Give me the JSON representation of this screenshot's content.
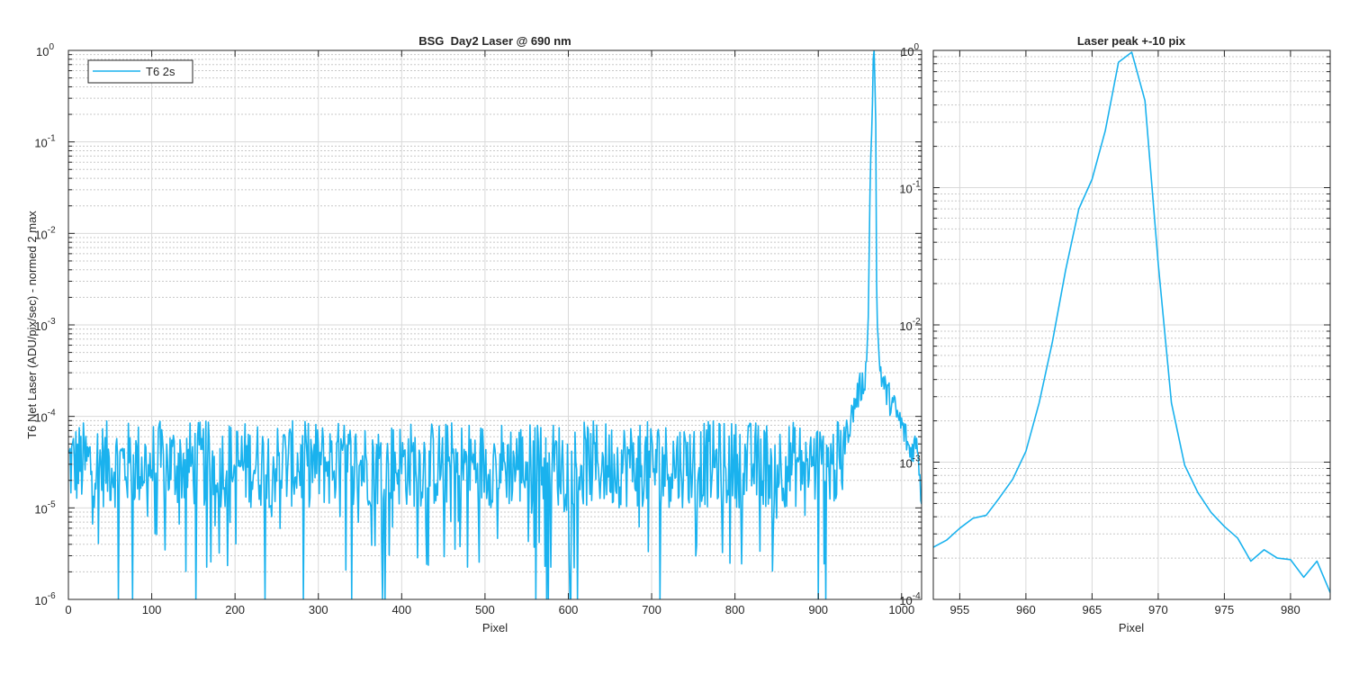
{
  "chart_data": [
    {
      "type": "line",
      "title": "BSG  Day2 Laser @ 690 nm",
      "xlabel": "Pixel",
      "ylabel": "T6 Net Laser (ADU/pix/sec) - normed 2 max",
      "xlim": [
        0,
        1024
      ],
      "ylim": [
        1e-06,
        1
      ],
      "yscale": "log",
      "grid": true,
      "legend": "top-left",
      "x_ticks": [
        0,
        100,
        200,
        300,
        400,
        500,
        600,
        700,
        800,
        900,
        1000
      ],
      "y_ticks": [
        1e-06,
        1e-05,
        0.0001,
        0.001,
        0.01,
        0.1,
        1
      ],
      "y_tick_labels": [
        {
          "base": "10",
          "exp": "-6"
        },
        {
          "base": "10",
          "exp": "-5"
        },
        {
          "base": "10",
          "exp": "-4"
        },
        {
          "base": "10",
          "exp": "-3"
        },
        {
          "base": "10",
          "exp": "-2"
        },
        {
          "base": "10",
          "exp": "-1"
        },
        {
          "base": "10",
          "exp": "0"
        }
      ],
      "series": [
        {
          "name": "T6 2s",
          "color": "#1ab2ee",
          "noise_floor": {
            "x_range": [
              0,
              930
            ],
            "typical_range": [
              1e-05,
              9e-05
            ],
            "min_dips": 1e-06
          },
          "x": [
            930,
            935,
            940,
            945,
            950,
            955,
            958,
            960,
            962,
            963,
            964,
            965,
            966,
            967,
            968,
            969,
            970,
            971,
            972,
            974,
            976,
            980,
            985,
            990,
            995,
            1000,
            1005,
            1010,
            1015,
            1020,
            1024
          ],
          "y": [
            5e-05,
            7e-05,
            0.0001,
            0.00015,
            0.0002,
            0.00024,
            0.0004,
            0.0012,
            0.026,
            0.07,
            0.12,
            0.26,
            0.82,
            1.0,
            0.43,
            0.16,
            0.0028,
            0.00095,
            0.0006,
            0.00036,
            0.00028,
            0.0002,
            0.00016,
            0.00013,
            0.0001,
            8e-05,
            6e-05,
            4e-05,
            5e-05,
            4.5e-05,
            1.1e-05
          ]
        }
      ]
    },
    {
      "type": "line",
      "title": "Laser peak +-10 pix",
      "xlabel": "Pixel",
      "ylabel": "",
      "xlim": [
        953,
        983
      ],
      "ylim": [
        0.0001,
        1
      ],
      "yscale": "log",
      "grid": true,
      "x_ticks": [
        955,
        960,
        965,
        970,
        975,
        980
      ],
      "y_ticks": [
        0.0001,
        0.001,
        0.01,
        0.1,
        1
      ],
      "y_tick_labels": [
        {
          "base": "10",
          "exp": "-4"
        },
        {
          "base": "10",
          "exp": "-3"
        },
        {
          "base": "10",
          "exp": "-2"
        },
        {
          "base": "10",
          "exp": "-1"
        },
        {
          "base": "10",
          "exp": "0"
        }
      ],
      "series": [
        {
          "name": "T6 2s",
          "color": "#1ab2ee",
          "x": [
            953,
            954,
            955,
            956,
            957,
            958,
            959,
            960,
            961,
            962,
            963,
            964,
            965,
            966,
            967,
            968,
            969,
            970,
            971,
            972,
            973,
            974,
            975,
            976,
            977,
            978,
            979,
            980,
            981,
            982,
            983
          ],
          "y": [
            0.00024,
            0.00027,
            0.00033,
            0.00039,
            0.00041,
            0.00055,
            0.00075,
            0.0012,
            0.0027,
            0.0075,
            0.025,
            0.07,
            0.115,
            0.26,
            0.82,
            0.97,
            0.43,
            0.028,
            0.0027,
            0.00095,
            0.0006,
            0.00043,
            0.00034,
            0.00028,
            0.00019,
            0.00023,
            0.0002,
            0.000195,
            0.000145,
            0.00019,
            0.000112
          ]
        }
      ]
    }
  ]
}
